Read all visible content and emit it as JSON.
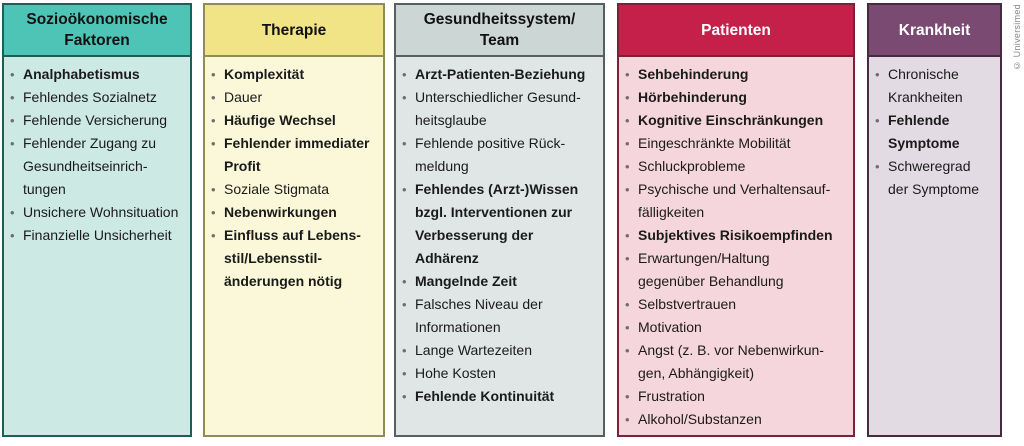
{
  "credit": "© Universimed",
  "columns": [
    {
      "id": "soziooekonomische-faktoren",
      "header": "Sozioökonomische\nFaktoren",
      "colors": {
        "header_bg": "#4ec4b6",
        "header_text": "#111111",
        "body_bg": "#cde9e4",
        "border": "#1c5f58"
      },
      "items": [
        {
          "text": "Analphabetismus",
          "bold": true
        },
        {
          "text": "Fehlendes Sozialnetz",
          "bold": false
        },
        {
          "text": "Fehlende Versicherung",
          "bold": false
        },
        {
          "text": "Fehlender Zugang zu\nGesundheitseinrich-\ntungen",
          "bold": false
        },
        {
          "text": "Unsichere Wohnsituation",
          "bold": false
        },
        {
          "text": "Finanzielle Unsicherheit",
          "bold": false
        }
      ]
    },
    {
      "id": "therapie",
      "header": "Therapie",
      "colors": {
        "header_bg": "#f0e487",
        "header_text": "#111111",
        "body_bg": "#faf8d8",
        "border": "#8f8c55"
      },
      "items": [
        {
          "text": "Komplexität",
          "bold": true
        },
        {
          "text": "Dauer",
          "bold": false
        },
        {
          "text": "Häufige Wechsel",
          "bold": true
        },
        {
          "text": "Fehlender immediater\nProfit",
          "bold": true
        },
        {
          "text": "Soziale Stigmata",
          "bold": false
        },
        {
          "text": "Nebenwirkungen",
          "bold": true
        },
        {
          "text": "Einfluss auf Lebens-\nstil/Lebensstil-\nänderungen nötig",
          "bold": true
        }
      ]
    },
    {
      "id": "gesundheitssystem-team",
      "header": "Gesundheitssystem/\nTeam",
      "colors": {
        "header_bg": "#ccd6d4",
        "header_text": "#111111",
        "body_bg": "#e0e6e5",
        "border": "#55605f"
      },
      "items": [
        {
          "text": "Arzt-Patienten-Beziehung",
          "bold": true
        },
        {
          "text": "Unterschiedlicher Gesund-\nheitsglaube",
          "bold": false
        },
        {
          "text": "Fehlende positive Rück-\nmeldung",
          "bold": false
        },
        {
          "text": "Fehlendes (Arzt-)Wissen\nbzgl. Interventionen zur\nVerbesserung der\nAdhärenz",
          "bold": true
        },
        {
          "text": "Mangelnde Zeit",
          "bold": true
        },
        {
          "text": "Falsches Niveau der\nInformationen",
          "bold": false
        },
        {
          "text": "Lange Wartezeiten",
          "bold": false
        },
        {
          "text": "Hohe Kosten",
          "bold": false
        },
        {
          "text": "Fehlende Kontinuität",
          "bold": true
        }
      ]
    },
    {
      "id": "patienten",
      "header": "Patienten",
      "colors": {
        "header_bg": "#c42049",
        "header_text": "#ffffff",
        "body_bg": "#f6d6dd",
        "border": "#7d2038"
      },
      "items": [
        {
          "text": "Sehbehinderung",
          "bold": true
        },
        {
          "text": "Hörbehinderung",
          "bold": true
        },
        {
          "text": "Kognitive Einschränkungen",
          "bold": true
        },
        {
          "text": "Eingeschränkte Mobilität",
          "bold": false
        },
        {
          "text": "Schluckprobleme",
          "bold": false
        },
        {
          "text": "Psychische und Verhaltensauf-\nfälligkeiten",
          "bold": false
        },
        {
          "text": "Subjektives Risikoempfinden",
          "bold": true
        },
        {
          "text": "Erwartungen/Haltung\ngegenüber Behandlung",
          "bold": false
        },
        {
          "text": "Selbstvertrauen",
          "bold": false
        },
        {
          "text": "Motivation",
          "bold": false
        },
        {
          "text": "Angst (z. B. vor Nebenwirkun-\ngen, Abhängigkeit)",
          "bold": false
        },
        {
          "text": "Frustration",
          "bold": false
        },
        {
          "text": "Alkohol/Substanzen",
          "bold": false
        }
      ]
    },
    {
      "id": "krankheit",
      "header": "Krankheit",
      "colors": {
        "header_bg": "#7b4a72",
        "header_text": "#ffffff",
        "body_bg": "#e3dbe3",
        "border": "#462a41"
      },
      "items": [
        {
          "text": "Chronische\nKrankheiten",
          "bold": false
        },
        {
          "text": "Fehlende\nSymptome",
          "bold": true
        },
        {
          "text": "Schweregrad\nder Symptome",
          "bold": false
        }
      ]
    }
  ]
}
